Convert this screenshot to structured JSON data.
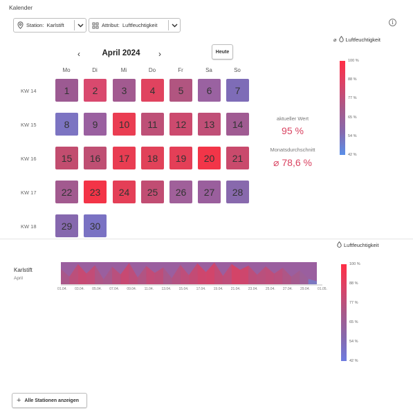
{
  "calendar": {
    "title": "Kalender",
    "station_select": {
      "label": "Station:",
      "value": "Karlstift"
    },
    "attribute_select": {
      "label": "Attribut:",
      "value": "Luftfeuchtigkeit"
    },
    "month_label": "April 2024",
    "prev_label": "‹",
    "next_label": "›",
    "today_label": "Heute",
    "weekdays": [
      "Mo",
      "Di",
      "Mi",
      "Do",
      "Fr",
      "Sa",
      "So"
    ],
    "weeks": [
      {
        "label": "KW 14",
        "days": [
          {
            "day": "1",
            "color": "#9c5a92",
            "col": 0
          },
          {
            "day": "2",
            "color": "#d9496e",
            "col": 1
          },
          {
            "day": "3",
            "color": "#a25a90",
            "col": 2
          },
          {
            "day": "4",
            "color": "#e0435f",
            "col": 3
          },
          {
            "day": "5",
            "color": "#b15580",
            "col": 4
          },
          {
            "day": "6",
            "color": "#9a62a1",
            "col": 5
          },
          {
            "day": "7",
            "color": "#7e6cb7",
            "col": 6
          }
        ]
      },
      {
        "label": "KW 15",
        "days": [
          {
            "day": "8",
            "color": "#7c74c2",
            "col": 0
          },
          {
            "day": "9",
            "color": "#9a60a0",
            "col": 1
          },
          {
            "day": "10",
            "color": "#ea3d52",
            "col": 2
          },
          {
            "day": "11",
            "color": "#be5077",
            "col": 3
          },
          {
            "day": "12",
            "color": "#cc4a6e",
            "col": 4
          },
          {
            "day": "13",
            "color": "#c04f77",
            "col": 5
          },
          {
            "day": "14",
            "color": "#a05b92",
            "col": 6
          }
        ]
      },
      {
        "label": "KW 16",
        "days": [
          {
            "day": "15",
            "color": "#c24d6f",
            "col": 0
          },
          {
            "day": "16",
            "color": "#bf4f73",
            "col": 1
          },
          {
            "day": "17",
            "color": "#e93d52",
            "col": 2
          },
          {
            "day": "18",
            "color": "#e14259",
            "col": 3
          },
          {
            "day": "19",
            "color": "#e43f57",
            "col": 4
          },
          {
            "day": "20",
            "color": "#f23548",
            "col": 5
          },
          {
            "day": "21",
            "color": "#c94a6c",
            "col": 6
          }
        ]
      },
      {
        "label": "KW 17",
        "days": [
          {
            "day": "22",
            "color": "#a25a8f",
            "col": 0
          },
          {
            "day": "23",
            "color": "#f33447",
            "col": 1
          },
          {
            "day": "24",
            "color": "#e43f57",
            "col": 2
          },
          {
            "day": "25",
            "color": "#c14d73",
            "col": 3
          },
          {
            "day": "26",
            "color": "#a0609a",
            "col": 4
          },
          {
            "day": "27",
            "color": "#9a5f9d",
            "col": 5
          },
          {
            "day": "28",
            "color": "#8869ad",
            "col": 6
          }
        ]
      },
      {
        "label": "KW 18",
        "days": [
          {
            "day": "29",
            "color": "#8668ae",
            "col": 0
          },
          {
            "day": "30",
            "color": "#7a72c3",
            "col": 1
          }
        ]
      }
    ],
    "current_value_label": "aktueller Wert",
    "current_value": "95 %",
    "monthly_avg_label": "Monatsdurchschnitt",
    "monthly_avg_value": "⌀ 78,6 %",
    "legend": {
      "avg_symbol": "⌀",
      "title": "Luftfeuchtigkeit",
      "ticks": [
        "100 %",
        "88 %",
        "77 %",
        "65 %",
        "54 %",
        "42 %"
      ]
    }
  },
  "timeline": {
    "legend_title": "Luftfeuchtigkeit",
    "legend_ticks": [
      "100 %",
      "88 %",
      "77 %",
      "65 %",
      "54 %",
      "42 %"
    ],
    "station_name": "Karlstift",
    "station_month": "April",
    "x_ticks": [
      "01.04.",
      "03.04.",
      "05.04.",
      "07.04.",
      "09.04.",
      "11.04.",
      "13.04.",
      "15.04.",
      "17.04.",
      "19.04.",
      "21.04.",
      "23.04.",
      "25.04.",
      "27.04.",
      "29.04.",
      "01.05."
    ],
    "humidity_pct": [
      82,
      62,
      95,
      70,
      92,
      55,
      88,
      68,
      98,
      60,
      90,
      72,
      86,
      58,
      93,
      66,
      97,
      74,
      99,
      64,
      95,
      80,
      91,
      67,
      89,
      70,
      85,
      62,
      78,
      56,
      50
    ],
    "add_button_label": "Alle Stationen anzeigen"
  }
}
